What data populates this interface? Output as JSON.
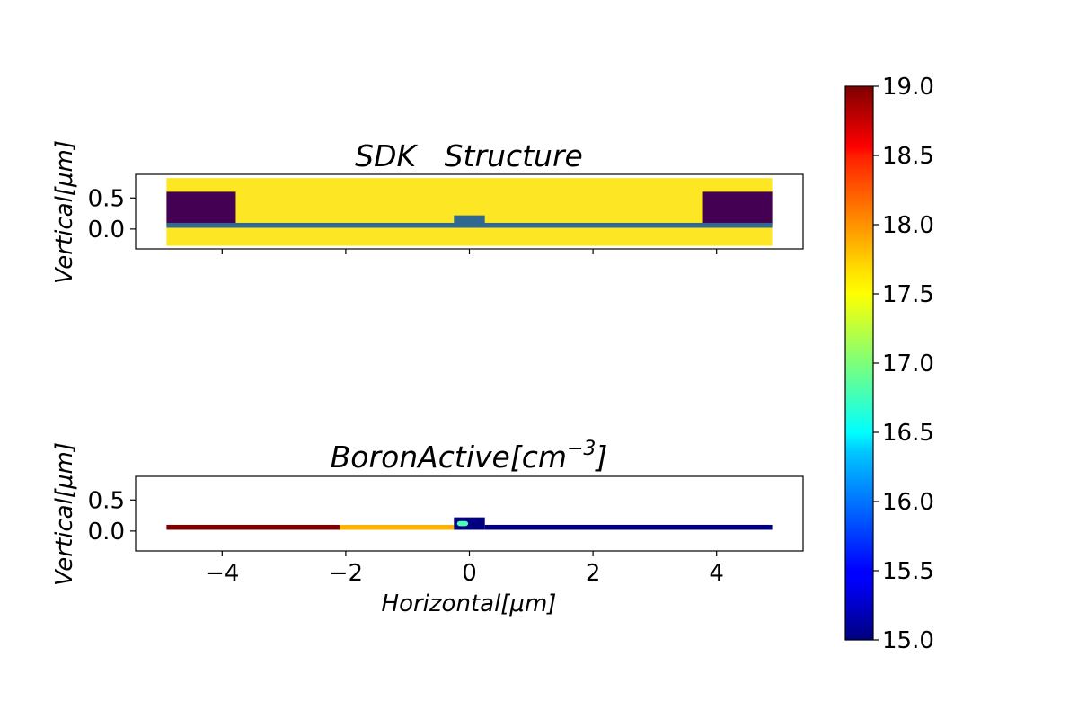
{
  "chart_data": [
    {
      "type": "heatmap",
      "title": "SDK   Structure",
      "ylabel": "Vertical[μm]",
      "xlabel": "",
      "xlim": [
        -5.4,
        5.4
      ],
      "ylim": [
        -0.32,
        0.88
      ],
      "x_ticks": [
        -4,
        -2,
        0,
        2,
        4
      ],
      "x_tick_labels_shown": false,
      "y_ticks": [
        0.0,
        0.5
      ],
      "y_tick_labels": [
        "0.0",
        "0.5"
      ],
      "regions": [
        {
          "name": "background",
          "x": [
            -4.9,
            4.9
          ],
          "y": [
            -0.27,
            0.82
          ],
          "color": "#fde725"
        },
        {
          "name": "left-contact",
          "x": [
            -4.9,
            -3.78
          ],
          "y": [
            0.07,
            0.6
          ],
          "color": "#440154"
        },
        {
          "name": "right-contact",
          "x": [
            3.78,
            4.9
          ],
          "y": [
            0.07,
            0.6
          ],
          "color": "#440154"
        },
        {
          "name": "channel-layer",
          "x": [
            -4.9,
            4.9
          ],
          "y": [
            0.02,
            0.1
          ],
          "color": "#31688e"
        },
        {
          "name": "gate",
          "x": [
            -0.25,
            0.25
          ],
          "y": [
            0.02,
            0.22
          ],
          "color": "#31688e"
        }
      ]
    },
    {
      "type": "heatmap",
      "title": "BoronActive[cm",
      "title_sup": "−3",
      "title_suffix": "]",
      "ylabel": "Vertical[μm]",
      "xlabel": "Horizontal[μm]",
      "xlim": [
        -5.4,
        5.4
      ],
      "ylim": [
        -0.32,
        0.88
      ],
      "x_ticks": [
        -4,
        -2,
        0,
        2,
        4
      ],
      "x_tick_labels": [
        "−4",
        "−2",
        "0",
        "2",
        "4"
      ],
      "y_ticks": [
        0.0,
        0.5
      ],
      "y_tick_labels": [
        "0.0",
        "0.5"
      ],
      "regions": [
        {
          "name": "p-plus-region",
          "x": [
            -4.9,
            -2.1
          ],
          "y": [
            0.02,
            0.1
          ],
          "value": 19.0
        },
        {
          "name": "p-region",
          "x": [
            -2.1,
            -0.25
          ],
          "y": [
            0.02,
            0.1
          ],
          "value": 17.8
        },
        {
          "name": "n-region",
          "x": [
            0.25,
            4.9
          ],
          "y": [
            0.02,
            0.1
          ],
          "value": 15.0
        },
        {
          "name": "gate",
          "x": [
            -0.25,
            0.25
          ],
          "y": [
            0.02,
            0.22
          ],
          "value": 15.0
        },
        {
          "name": "gate-edge-spot",
          "x": [
            -0.2,
            -0.02
          ],
          "y": [
            0.08,
            0.16
          ],
          "value": 16.8
        }
      ]
    }
  ],
  "colorbar": {
    "colormap": "jet",
    "range": [
      15.0,
      19.0
    ],
    "ticks": [
      "19.0",
      "18.5",
      "18.0",
      "17.5",
      "17.0",
      "16.5",
      "16.0",
      "15.5",
      "15.0"
    ]
  }
}
